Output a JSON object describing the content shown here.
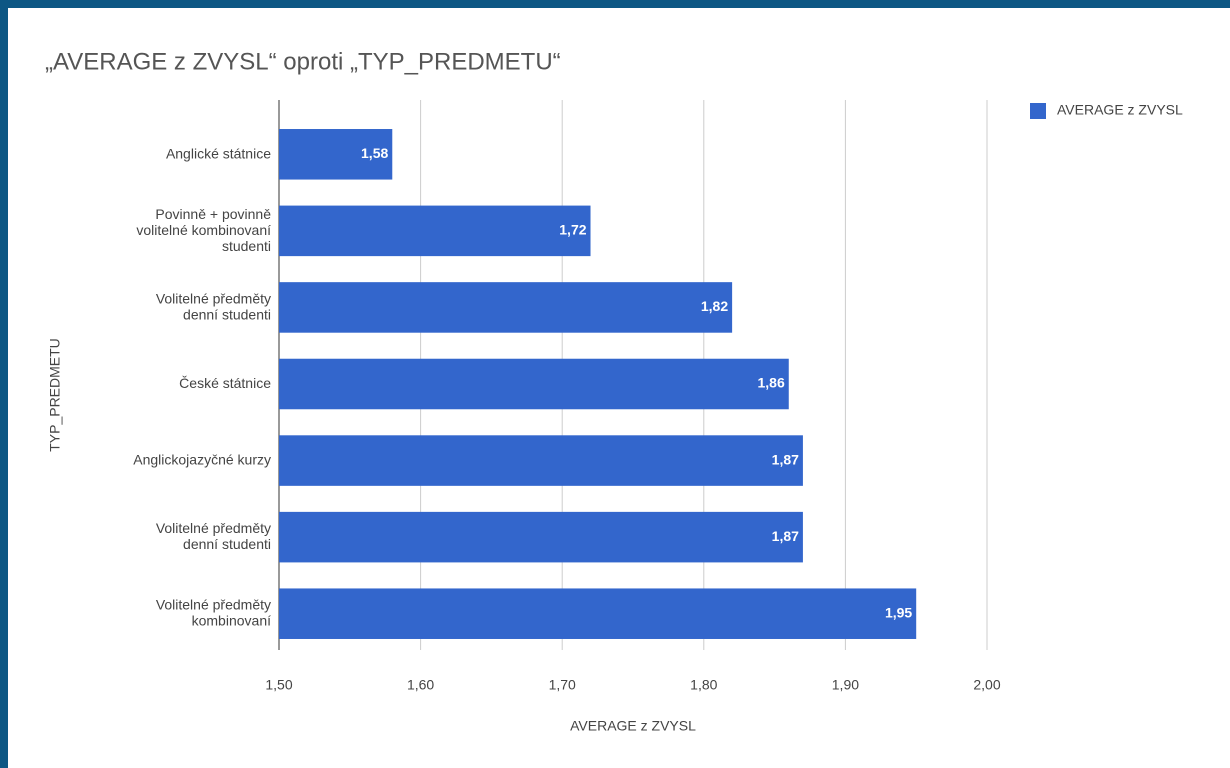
{
  "chart_data": {
    "type": "bar",
    "orientation": "horizontal",
    "title": "„AVERAGE z ZVYSL“ oproti „TYP_PREDMETU“",
    "x_label": "AVERAGE z ZVYSL",
    "y_label": "TYP_PREDMETU",
    "categories": [
      "Anglické státnice",
      "Povinně + povinně\nvolitelné kombinovaní\nstudenti",
      "Volitelné předměty\ndenní studenti",
      "České státnice",
      "Anglickojazyčné kurzy",
      "Volitelné předměty\ndenní studenti",
      "Volitelné předměty\nkombinovaní"
    ],
    "series": [
      {
        "name": "AVERAGE z ZVYSL",
        "color": "#3366cc",
        "values": [
          1.58,
          1.72,
          1.82,
          1.86,
          1.87,
          1.87,
          1.95
        ],
        "value_labels": [
          "1,58",
          "1,72",
          "1,82",
          "1,86",
          "1,87",
          "1,87",
          "1,95"
        ]
      }
    ],
    "xlim": [
      1.5,
      2.0
    ],
    "xticks": [
      {
        "value": 1.5,
        "label": "1,50"
      },
      {
        "value": 1.6,
        "label": "1,60"
      },
      {
        "value": 1.7,
        "label": "1,70"
      },
      {
        "value": 1.8,
        "label": "1,80"
      },
      {
        "value": 1.9,
        "label": "1,90"
      },
      {
        "value": 2.0,
        "label": "2,00"
      }
    ],
    "grid": true,
    "legend": "top-right"
  }
}
